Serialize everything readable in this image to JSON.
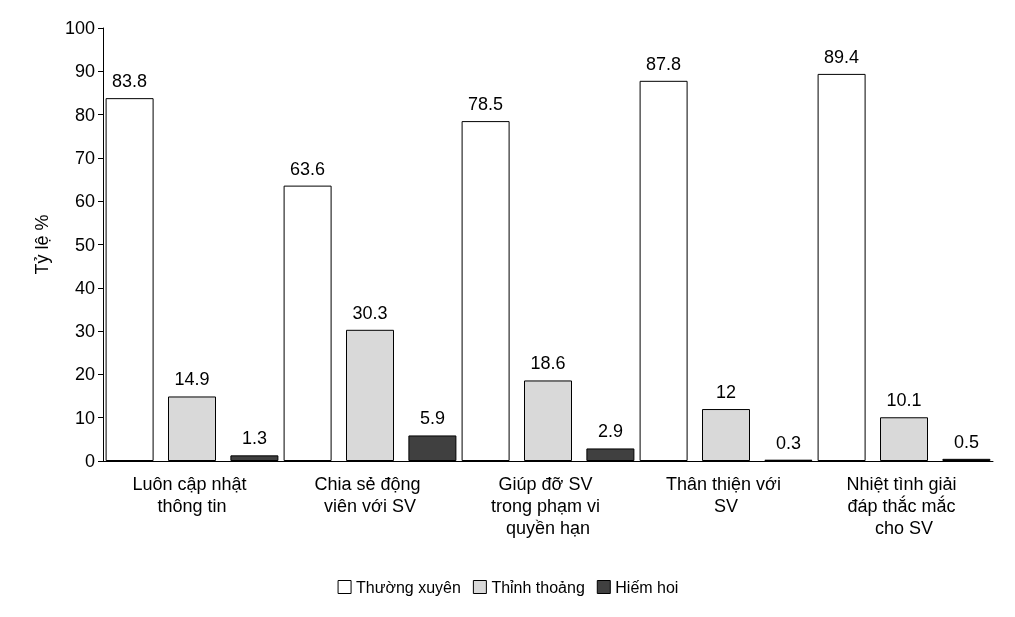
{
  "chart_data": {
    "type": "bar",
    "ylabel": "Tỷ lệ %",
    "categories": [
      "Luôn cập nhật thông tin",
      "Chia sẻ động viên với SV",
      "Giúp đỡ SV trong phạm vi quyền hạn",
      "Thân thiện với SV",
      "Nhiệt tình giải đáp thắc mắc cho SV"
    ],
    "series": [
      {
        "name": "Thường xuyên",
        "color": "#ffffff",
        "values": [
          83.8,
          63.6,
          78.5,
          87.8,
          89.4
        ]
      },
      {
        "name": "Thỉnh thoảng",
        "color": "#d9d9d9",
        "values": [
          14.9,
          30.3,
          18.6,
          12,
          10.1
        ]
      },
      {
        "name": "Hiếm hoi",
        "color": "#404040",
        "values": [
          1.3,
          5.9,
          2.9,
          0.3,
          0.5
        ]
      }
    ],
    "ylim": [
      0,
      100
    ],
    "yticks": [
      0,
      10,
      20,
      30,
      40,
      50,
      60,
      70,
      80,
      90,
      100
    ],
    "grid": false,
    "legend": "bottom",
    "data_labels": true
  }
}
